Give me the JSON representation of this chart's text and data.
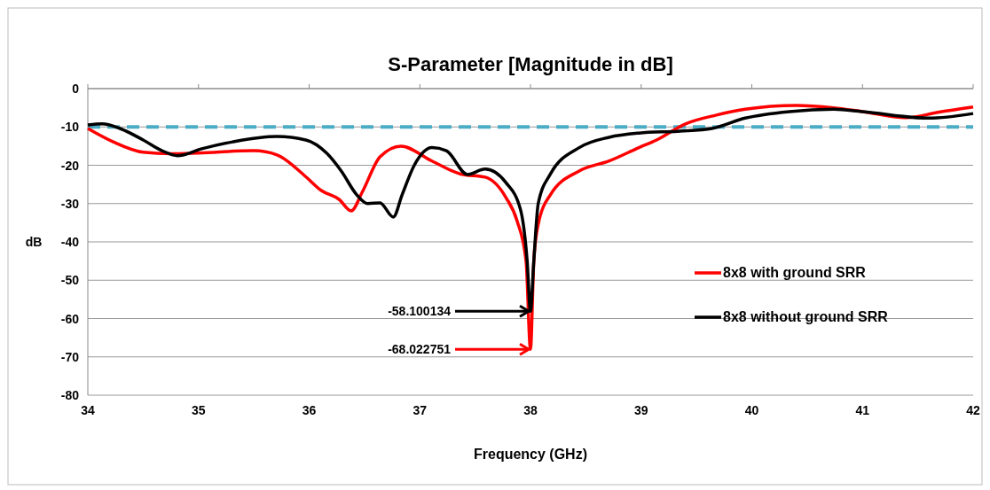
{
  "chart_data": {
    "type": "line",
    "title": "S-Parameter [Magnitude in dB]",
    "xlabel": "Frequency (GHz)",
    "ylabel": "dB",
    "xlim": [
      34,
      42
    ],
    "xticks": [
      34,
      35,
      36,
      37,
      38,
      39,
      40,
      41,
      42
    ],
    "ylim": [
      -80,
      0
    ],
    "yticks": [
      -80,
      -70,
      -60,
      -50,
      -40,
      -30,
      -20,
      -10,
      0
    ],
    "grid": "y",
    "legend": "right",
    "marker": "none",
    "line_style": "solid",
    "series": [
      {
        "name": "8x8 with ground SRR",
        "color": "#ff0000",
        "x": [
          34,
          34.23,
          34.5,
          34.75,
          35,
          35.5,
          35.71,
          35.97,
          36.11,
          36.27,
          36.38,
          36.48,
          36.64,
          36.83,
          37.11,
          37.37,
          37.59,
          37.78,
          37.88,
          37.96,
          38,
          38.03,
          38.07,
          38.18,
          38.44,
          38.71,
          38.98,
          39.14,
          39.4,
          39.68,
          39.94,
          40.4,
          40.74,
          41,
          41.4,
          41.68,
          42
        ],
        "values": [
          -10.4,
          -13.9,
          -16.6,
          -17,
          -16.8,
          -16.2,
          -17.3,
          -23,
          -26.6,
          -28.9,
          -31.9,
          -27,
          -17.8,
          -15,
          -18.9,
          -22.3,
          -23.1,
          -28.5,
          -34.6,
          -45,
          -68.022751,
          -45,
          -35.4,
          -27.7,
          -21.5,
          -18.9,
          -15.4,
          -13.4,
          -9.2,
          -6.9,
          -5.4,
          -4.4,
          -5,
          -6,
          -7.6,
          -6.2,
          -4.8
        ]
      },
      {
        "name": "8x8 without ground SRR",
        "color": "#000000",
        "x": [
          34,
          34.13,
          34.29,
          34.5,
          34.67,
          34.81,
          35.03,
          35.31,
          35.71,
          35.97,
          36.16,
          36.29,
          36.43,
          36.53,
          36.64,
          36.76,
          36.84,
          36.95,
          37.11,
          37.24,
          37.43,
          37.59,
          37.78,
          37.91,
          37.97,
          38,
          38.03,
          38.07,
          38.18,
          38.44,
          38.71,
          38.98,
          39.35,
          39.64,
          39.94,
          40.34,
          40.74,
          41,
          41.6,
          42
        ],
        "values": [
          -9.5,
          -9.2,
          -10.4,
          -13.4,
          -16.2,
          -17.5,
          -15.7,
          -13.9,
          -12.5,
          -13.4,
          -16.9,
          -21.5,
          -27.7,
          -30,
          -29.8,
          -33.5,
          -27.7,
          -20,
          -15.4,
          -16.2,
          -22.4,
          -21,
          -24.6,
          -31.6,
          -45,
          -58.100134,
          -45,
          -30,
          -22.3,
          -15.4,
          -12.7,
          -11.6,
          -11.1,
          -10.4,
          -7.7,
          -6,
          -5.4,
          -6,
          -7.7,
          -6.5
        ]
      }
    ],
    "ref_lines": [
      {
        "axis": "y",
        "value": -10,
        "color": "#4bacc6",
        "line_style": "dashed"
      }
    ],
    "annotations": [
      {
        "text": "-58.100134",
        "x": 38,
        "y": -58.100134
      },
      {
        "text": "-68.022751",
        "x": 38,
        "y": -68.022751
      }
    ]
  }
}
